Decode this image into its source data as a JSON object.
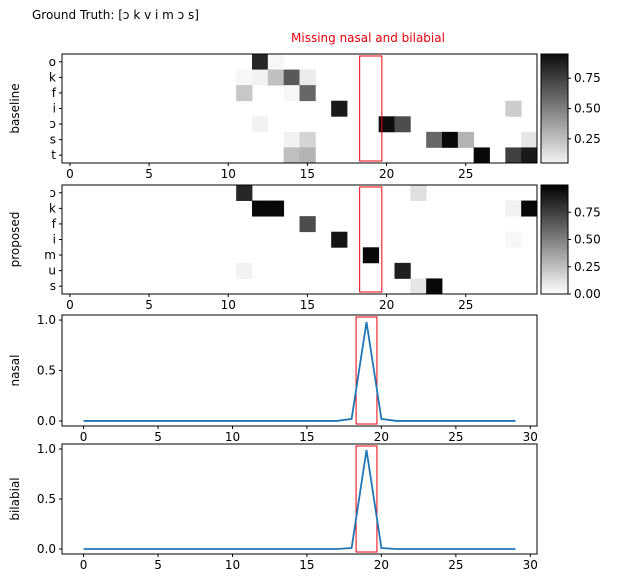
{
  "title": "Ground Truth: [ɔ k v i m ɔ s]",
  "annotation": "Missing nasal and bilabial",
  "highlight": {
    "x_from": 18.3,
    "x_to": 19.7,
    "color": "#e8000b"
  },
  "line_color": "#1f77b4",
  "chart_data": [
    {
      "type": "heatmap",
      "ylabel": "baseline",
      "rows": [
        "o",
        "k",
        "f",
        "i",
        "ɔ",
        "s",
        "t"
      ],
      "x_ticks": [
        0,
        5,
        10,
        15,
        20,
        25
      ],
      "n_cols": 30,
      "values": [
        [
          0,
          0,
          0,
          0,
          0,
          0,
          0,
          0,
          0,
          0,
          0,
          0,
          0.85,
          0.03,
          0,
          0,
          0,
          0,
          0,
          0,
          0,
          0,
          0,
          0,
          0,
          0,
          0,
          0,
          0,
          0
        ],
        [
          0,
          0,
          0,
          0,
          0,
          0,
          0,
          0,
          0,
          0,
          0,
          0.03,
          0.05,
          0.25,
          0.65,
          0.08,
          0,
          0,
          0,
          0,
          0,
          0,
          0,
          0,
          0,
          0,
          0,
          0,
          0,
          0
        ],
        [
          0,
          0,
          0,
          0,
          0,
          0,
          0,
          0,
          0,
          0,
          0,
          0.22,
          0,
          0,
          0.03,
          0.6,
          0,
          0,
          0,
          0,
          0,
          0,
          0,
          0,
          0,
          0,
          0,
          0,
          0,
          0
        ],
        [
          0,
          0,
          0,
          0,
          0,
          0,
          0,
          0,
          0,
          0,
          0,
          0,
          0,
          0,
          0,
          0,
          0,
          0.9,
          0,
          0,
          0,
          0,
          0,
          0,
          0,
          0,
          0,
          0,
          0.2,
          0
        ],
        [
          0,
          0,
          0,
          0,
          0,
          0,
          0,
          0,
          0,
          0,
          0,
          0,
          0.05,
          0,
          0,
          0,
          0,
          0,
          0,
          0,
          0.95,
          0.7,
          0,
          0,
          0,
          0,
          0,
          0,
          0,
          0
        ],
        [
          0,
          0,
          0,
          0,
          0,
          0,
          0,
          0,
          0,
          0,
          0,
          0,
          0,
          0,
          0.05,
          0.17,
          0,
          0,
          0,
          0,
          0,
          0,
          0,
          0.6,
          0.97,
          0.3,
          0,
          0,
          0,
          0.1
        ],
        [
          0,
          0,
          0,
          0,
          0,
          0,
          0,
          0,
          0,
          0,
          0,
          0,
          0,
          0,
          0.25,
          0.3,
          0,
          0,
          0,
          0,
          0,
          0,
          0,
          0,
          0,
          0,
          0.97,
          0,
          0.75,
          0.9
        ]
      ],
      "colorbar": {
        "ticks": [
          0.25,
          0.5,
          0.75
        ],
        "range": [
          0.05,
          0.95
        ]
      }
    },
    {
      "type": "heatmap",
      "ylabel": "proposed",
      "rows": [
        "ɔ",
        "k",
        "f",
        "i",
        "m",
        "u",
        "s"
      ],
      "x_ticks": [
        0,
        5,
        10,
        15,
        20,
        25
      ],
      "n_cols": 30,
      "values": [
        [
          0,
          0,
          0,
          0,
          0,
          0,
          0,
          0,
          0,
          0,
          0,
          0.85,
          0,
          0,
          0,
          0,
          0,
          0,
          0,
          0,
          0,
          0,
          0.12,
          0,
          0,
          0,
          0,
          0,
          0,
          0
        ],
        [
          0,
          0,
          0,
          0,
          0,
          0,
          0,
          0,
          0,
          0,
          0,
          0,
          0.97,
          0.97,
          0,
          0,
          0,
          0,
          0,
          0,
          0,
          0,
          0,
          0,
          0,
          0,
          0,
          0,
          0.05,
          0.97
        ],
        [
          0,
          0,
          0,
          0,
          0,
          0,
          0,
          0,
          0,
          0,
          0,
          0,
          0,
          0,
          0,
          0.7,
          0,
          0,
          0,
          0,
          0,
          0,
          0,
          0,
          0,
          0,
          0,
          0,
          0,
          0
        ],
        [
          0,
          0,
          0,
          0,
          0,
          0,
          0,
          0,
          0,
          0,
          0,
          0,
          0,
          0,
          0,
          0,
          0,
          0.92,
          0,
          0,
          0,
          0,
          0,
          0,
          0,
          0,
          0,
          0,
          0.03,
          0
        ],
        [
          0,
          0,
          0,
          0,
          0,
          0,
          0,
          0,
          0,
          0,
          0,
          0,
          0,
          0,
          0,
          0,
          0,
          0,
          0,
          0.97,
          0,
          0,
          0,
          0,
          0,
          0,
          0,
          0,
          0,
          0
        ],
        [
          0,
          0,
          0,
          0,
          0,
          0,
          0,
          0,
          0,
          0,
          0,
          0.05,
          0,
          0,
          0,
          0,
          0,
          0,
          0,
          0,
          0,
          0.88,
          0,
          0,
          0,
          0,
          0,
          0,
          0,
          0
        ],
        [
          0,
          0,
          0,
          0,
          0,
          0,
          0,
          0,
          0,
          0,
          0,
          0,
          0,
          0,
          0,
          0,
          0,
          0,
          0,
          0,
          0,
          0,
          0.1,
          0.97,
          0,
          0,
          0,
          0,
          0,
          0
        ]
      ],
      "colorbar": {
        "ticks": [
          0.0,
          0.25,
          0.5,
          0.75
        ],
        "range": [
          0.0,
          1.0
        ]
      }
    },
    {
      "type": "line",
      "ylabel": "nasal",
      "x_ticks": [
        0,
        5,
        10,
        15,
        20,
        25,
        30
      ],
      "y_ticks": [
        0.0,
        0.5,
        1.0
      ],
      "xlim": [
        -1.45,
        30.45
      ],
      "ylim": [
        -0.05,
        1.05
      ],
      "x": [
        0,
        1,
        2,
        3,
        4,
        5,
        6,
        7,
        8,
        9,
        10,
        11,
        12,
        13,
        14,
        15,
        16,
        17,
        18,
        19,
        20,
        21,
        22,
        23,
        24,
        25,
        26,
        27,
        28,
        29
      ],
      "y": [
        0,
        0,
        0,
        0,
        0,
        0,
        0,
        0,
        0,
        0,
        0,
        0,
        0,
        0,
        0,
        0,
        0,
        0,
        0.02,
        0.98,
        0.02,
        0,
        0,
        0,
        0,
        0,
        0,
        0,
        0,
        0
      ]
    },
    {
      "type": "line",
      "ylabel": "bilabial",
      "x_ticks": [
        0,
        5,
        10,
        15,
        20,
        25,
        30
      ],
      "y_ticks": [
        0.0,
        0.5,
        1.0
      ],
      "xlim": [
        -1.45,
        30.45
      ],
      "ylim": [
        -0.05,
        1.05
      ],
      "x": [
        0,
        1,
        2,
        3,
        4,
        5,
        6,
        7,
        8,
        9,
        10,
        11,
        12,
        13,
        14,
        15,
        16,
        17,
        18,
        19,
        20,
        21,
        22,
        23,
        24,
        25,
        26,
        27,
        28,
        29
      ],
      "y": [
        0,
        0,
        0,
        0,
        0,
        0,
        0,
        0,
        0,
        0,
        0,
        0,
        0,
        0,
        0,
        0,
        0,
        0,
        0.01,
        0.99,
        0.01,
        0,
        0,
        0,
        0,
        0,
        0,
        0,
        0,
        0
      ]
    }
  ]
}
